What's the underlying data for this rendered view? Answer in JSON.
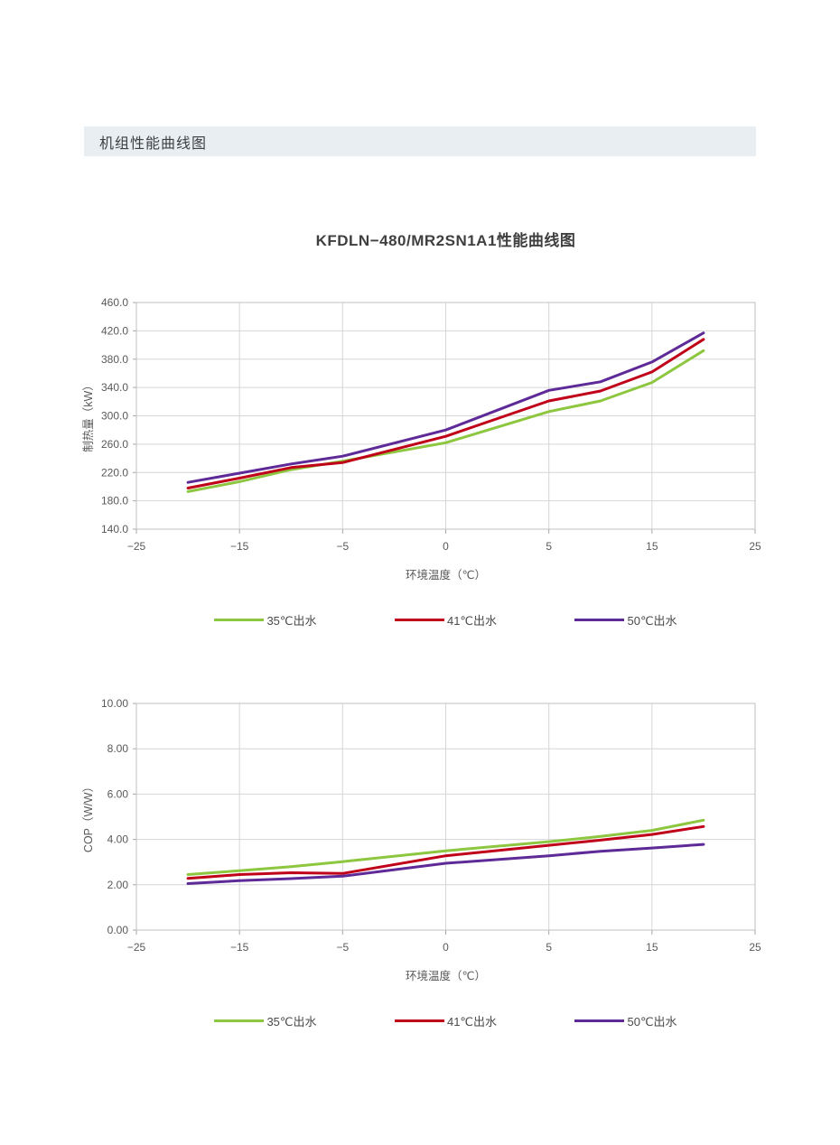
{
  "page": {
    "header": "机组性能曲线图",
    "chart_block_title": "KFDLN−480/MR2SN1A1性能曲线图"
  },
  "colors": {
    "s35": "#8DC63F",
    "s41": "#C00018",
    "s50": "#5E2A97",
    "grid": "#D6D6D6",
    "axis": "#BFBFBF",
    "tick": "#A6A6A6",
    "tick_text": "#595959",
    "header_bg": "#E9EEF2"
  },
  "legend": {
    "items": [
      {
        "label": "35℃出水",
        "color_key": "s35"
      },
      {
        "label": "41℃出水",
        "color_key": "s41"
      },
      {
        "label": "50℃出水",
        "color_key": "s50"
      }
    ]
  },
  "chart_data": [
    {
      "type": "line",
      "title": "KFDLN−480/MR2SN1A1性能曲线图",
      "xlabel": "环境温度（℃）",
      "ylabel": "制热量（kW）",
      "x_tick_labels": [
        "−25",
        "−15",
        "−5",
        "0",
        "5",
        "15",
        "25"
      ],
      "x_tick_values": [
        -25,
        -15,
        -5,
        0,
        5,
        15,
        25
      ],
      "axis_note": "category-style axis: ticks evenly spaced although values are not linear",
      "y_tick_labels": [
        "460.0",
        "420.0",
        "380.0",
        "340.0",
        "300.0",
        "260.0",
        "220.0",
        "180.0",
        "140.0"
      ],
      "ylim": [
        140,
        460
      ],
      "y_step": 40,
      "grid": true,
      "legend_position": "bottom",
      "x": [
        -20,
        -15,
        -10,
        -5,
        0,
        5,
        10,
        15,
        20
      ],
      "x_u": [
        0.5,
        1,
        1.5,
        2,
        3,
        4,
        4.5,
        5,
        5.5
      ],
      "series": [
        {
          "name": "35℃出水",
          "color_key": "s35",
          "values": [
            193,
            207,
            224,
            236,
            262,
            306,
            321,
            347,
            392
          ]
        },
        {
          "name": "41℃出水",
          "color_key": "s41",
          "values": [
            198,
            212,
            227,
            234,
            271,
            321,
            335,
            362,
            408
          ]
        },
        {
          "name": "50℃出水",
          "color_key": "s50",
          "values": [
            206,
            219,
            232,
            243,
            280,
            336,
            348,
            376,
            417
          ]
        }
      ]
    },
    {
      "type": "line",
      "title": "",
      "xlabel": "环境温度（℃）",
      "ylabel": "COP（W/W）",
      "x_tick_labels": [
        "−25",
        "−15",
        "−5",
        "0",
        "5",
        "15",
        "25"
      ],
      "x_tick_values": [
        -25,
        -15,
        -5,
        0,
        5,
        15,
        25
      ],
      "axis_note": "category-style axis: ticks evenly spaced although values are not linear",
      "y_tick_labels": [
        "10.00",
        "8.00",
        "6.00",
        "4.00",
        "2.00",
        "0.00"
      ],
      "ylim": [
        0,
        10
      ],
      "y_step": 2,
      "grid": true,
      "legend_position": "bottom",
      "x": [
        -20,
        -15,
        -10,
        -5,
        0,
        5,
        10,
        15,
        20
      ],
      "x_u": [
        0.5,
        1,
        1.5,
        2,
        3,
        4,
        4.5,
        5,
        5.5
      ],
      "series": [
        {
          "name": "35℃出水",
          "color_key": "s35",
          "values": [
            2.45,
            2.62,
            2.8,
            3.02,
            3.5,
            3.9,
            4.13,
            4.4,
            4.85
          ]
        },
        {
          "name": "41℃出水",
          "color_key": "s41",
          "values": [
            2.28,
            2.45,
            2.53,
            2.5,
            3.28,
            3.74,
            3.97,
            4.22,
            4.57
          ]
        },
        {
          "name": "50℃出水",
          "color_key": "s50",
          "values": [
            2.05,
            2.18,
            2.27,
            2.38,
            2.95,
            3.28,
            3.48,
            3.62,
            3.78
          ]
        }
      ]
    }
  ]
}
